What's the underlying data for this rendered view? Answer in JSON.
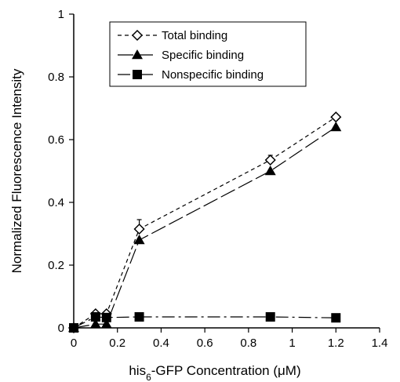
{
  "chart_data": {
    "type": "line",
    "title": "",
    "xlabel": "his6-GFP Concentration (μM)",
    "ylabel": "Normalized Fluorescence Intensity",
    "xlim": [
      0,
      1.4
    ],
    "ylim": [
      0,
      1
    ],
    "xticks": [
      "0",
      "0.2",
      "0.4",
      "0.6",
      "0.8",
      "1",
      "1.2",
      "1.4"
    ],
    "yticks": [
      "0",
      "0.2",
      "0.4",
      "0.6",
      "0.8",
      "1"
    ],
    "grid": false,
    "legend_position": "top-center",
    "series": [
      {
        "name": "Total binding",
        "marker": "open-diamond",
        "line_style": "short-dash",
        "x": [
          0,
          0.1,
          0.15,
          0.3,
          0.9,
          1.2
        ],
        "y": [
          0.0,
          0.045,
          0.045,
          0.315,
          0.535,
          0.672
        ],
        "error": [
          0,
          0,
          0,
          0.03,
          0.015,
          0.005
        ]
      },
      {
        "name": "Specific binding",
        "marker": "filled-triangle",
        "line_style": "long-dash",
        "x": [
          0,
          0.1,
          0.15,
          0.3,
          0.9,
          1.2
        ],
        "y": [
          0.0,
          0.012,
          0.012,
          0.28,
          0.5,
          0.64
        ]
      },
      {
        "name": "Nonspecific binding",
        "marker": "filled-square",
        "line_style": "dash-dot",
        "x": [
          0,
          0.1,
          0.15,
          0.3,
          0.9,
          1.2
        ],
        "y": [
          0.0,
          0.035,
          0.033,
          0.035,
          0.035,
          0.032
        ]
      }
    ]
  }
}
